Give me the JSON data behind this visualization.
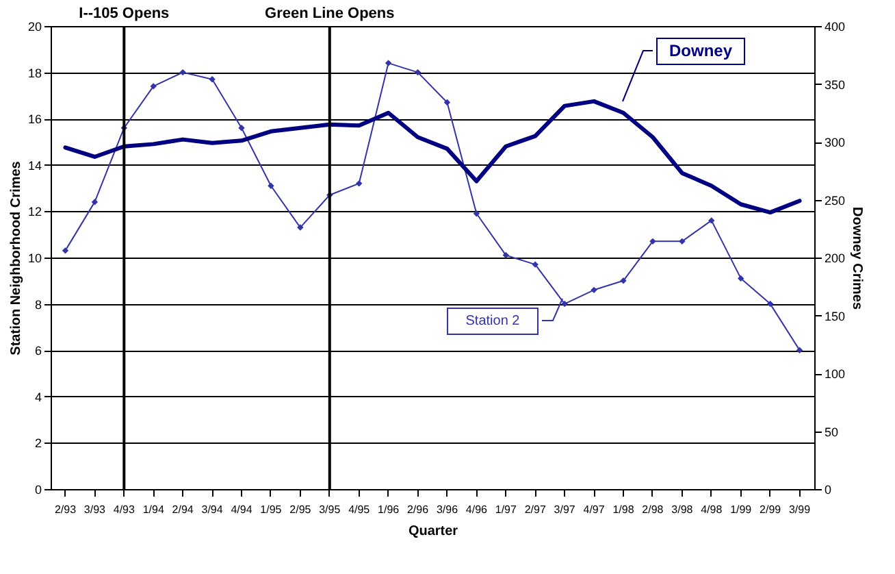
{
  "chart_data": {
    "type": "line",
    "xlabel": "Quarter",
    "ylabel": "Station Neighborhood Crimes",
    "y2label": "Downey Crimes",
    "categories": [
      "2/93",
      "3/93",
      "4/93",
      "1/94",
      "2/94",
      "3/94",
      "4/94",
      "1/95",
      "2/95",
      "3/95",
      "4/95",
      "1/96",
      "2/96",
      "3/96",
      "4/96",
      "1/97",
      "2/97",
      "3/97",
      "4/97",
      "1/98",
      "2/98",
      "3/98",
      "4/98",
      "1/99",
      "2/99",
      "3/99"
    ],
    "series": [
      {
        "name": "Station 2",
        "color": "#3333aa",
        "marker": "diamond",
        "values": [
          10.3,
          12.4,
          15.6,
          17.4,
          18.0,
          17.7,
          15.6,
          13.1,
          11.3,
          12.7,
          13.2,
          18.4,
          18.0,
          16.7,
          11.9,
          10.1,
          9.7,
          8.0,
          8.6,
          9.0,
          10.7,
          10.7,
          11.6,
          9.1,
          8.0,
          6.0
        ]
      },
      {
        "name": "Downey",
        "color": "#000080",
        "axis": "y2",
        "values": [
          295,
          287,
          296,
          298,
          302,
          299,
          301,
          309,
          312,
          315,
          314,
          325,
          304,
          294,
          266,
          296,
          305,
          331,
          335,
          325,
          304,
          273,
          262,
          246,
          239,
          249
        ]
      }
    ],
    "ylim": [
      0,
      20
    ],
    "yticks": [
      0,
      2,
      4,
      6,
      8,
      10,
      12,
      14,
      16,
      18,
      20
    ],
    "y2lim": [
      0,
      400
    ],
    "y2ticks": [
      0,
      50,
      100,
      150,
      200,
      250,
      300,
      350,
      400
    ],
    "grid": "y",
    "legend": false,
    "ref_lines": [
      {
        "axis": "x",
        "value": "4/93",
        "label": "I--105 Opens",
        "color": "#000000"
      },
      {
        "axis": "x",
        "value": "3/95",
        "label": "Green Line Opens",
        "color": "#000000"
      }
    ]
  }
}
